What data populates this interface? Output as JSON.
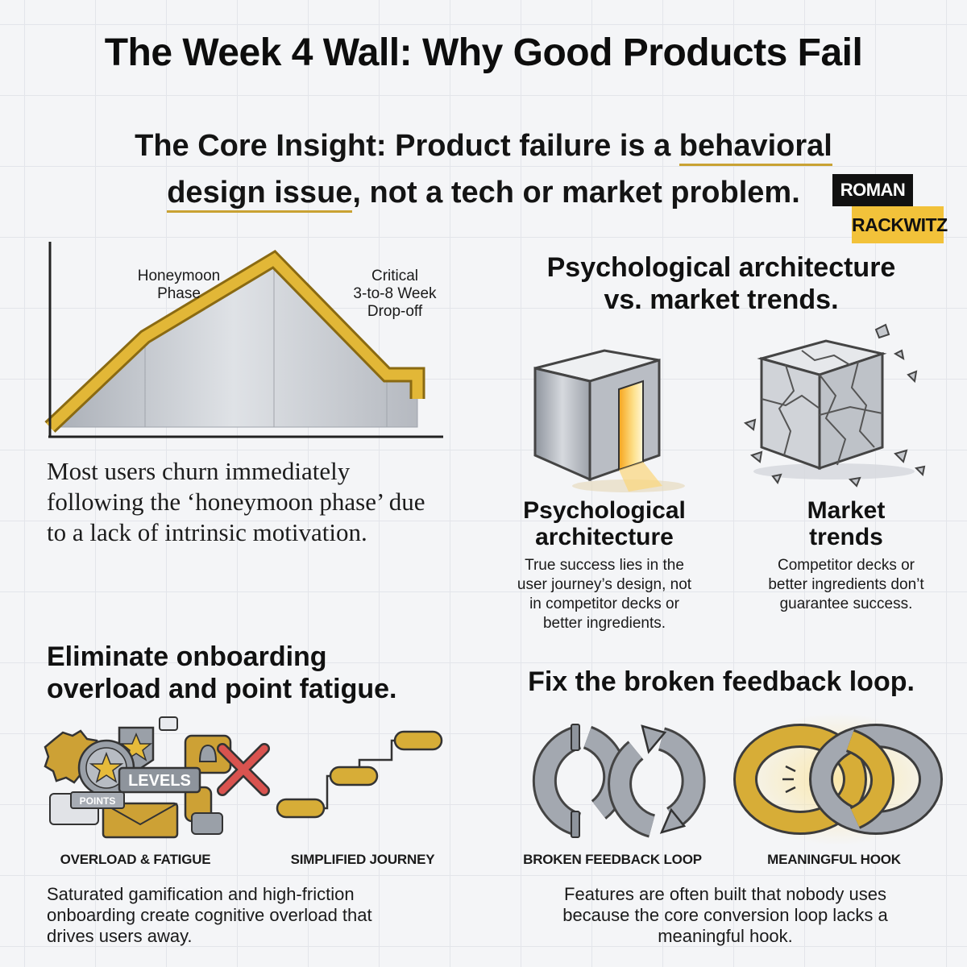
{
  "title": "The Week 4 Wall: Why Good Products Fail",
  "insight": {
    "prefix": "The Core Insight: Product failure is a ",
    "highlight1": "behavioral",
    "highlight2": "design issue",
    "suffix": ", not a tech or market problem."
  },
  "badge": {
    "line1": "ROMAN",
    "line2": "RACKWITZ"
  },
  "chart": {
    "label_honeymoon": [
      "Honeymoon",
      "Phase"
    ],
    "label_dropoff": [
      "Critical",
      "3-to-8 Week",
      "Drop-off"
    ],
    "colors": {
      "line": "#d6a92e",
      "area": "#c6cad1"
    }
  },
  "churn_text": "Most users churn immediately following the ‘honeymoon phase’ due to a lack of intrinsic motivation.",
  "architecture": {
    "heading": [
      "Psychological architecture",
      "vs. market trends."
    ],
    "left_title": [
      "Psychological",
      "architecture"
    ],
    "left_desc": [
      "True success lies in the",
      "user journey’s design, not",
      "in competitor decks or",
      "better ingredients."
    ],
    "right_title": [
      "Market",
      "trends"
    ],
    "right_desc": [
      "Competitor decks or",
      "better ingredients don’t",
      "guarantee success."
    ]
  },
  "onboarding": {
    "heading": [
      "Eliminate onboarding",
      "overload and point fatigue."
    ],
    "levels_label": "LEVELS",
    "points_label": "POINTS",
    "cap_left": "OVERLOAD & FATIGUE",
    "cap_right": "SIMPLIFIED JOURNEY",
    "desc": [
      "Saturated gamification and high-friction",
      "onboarding create cognitive overload that",
      "drives users away."
    ]
  },
  "feedback": {
    "heading": "Fix the broken feedback loop.",
    "cap_left": "BROKEN FEEDBACK LOOP",
    "cap_right": "MEANINGFUL HOOK",
    "desc": [
      "Features are often built that nobody uses",
      "because the core conversion loop lacks a",
      "meaningful hook."
    ]
  }
}
